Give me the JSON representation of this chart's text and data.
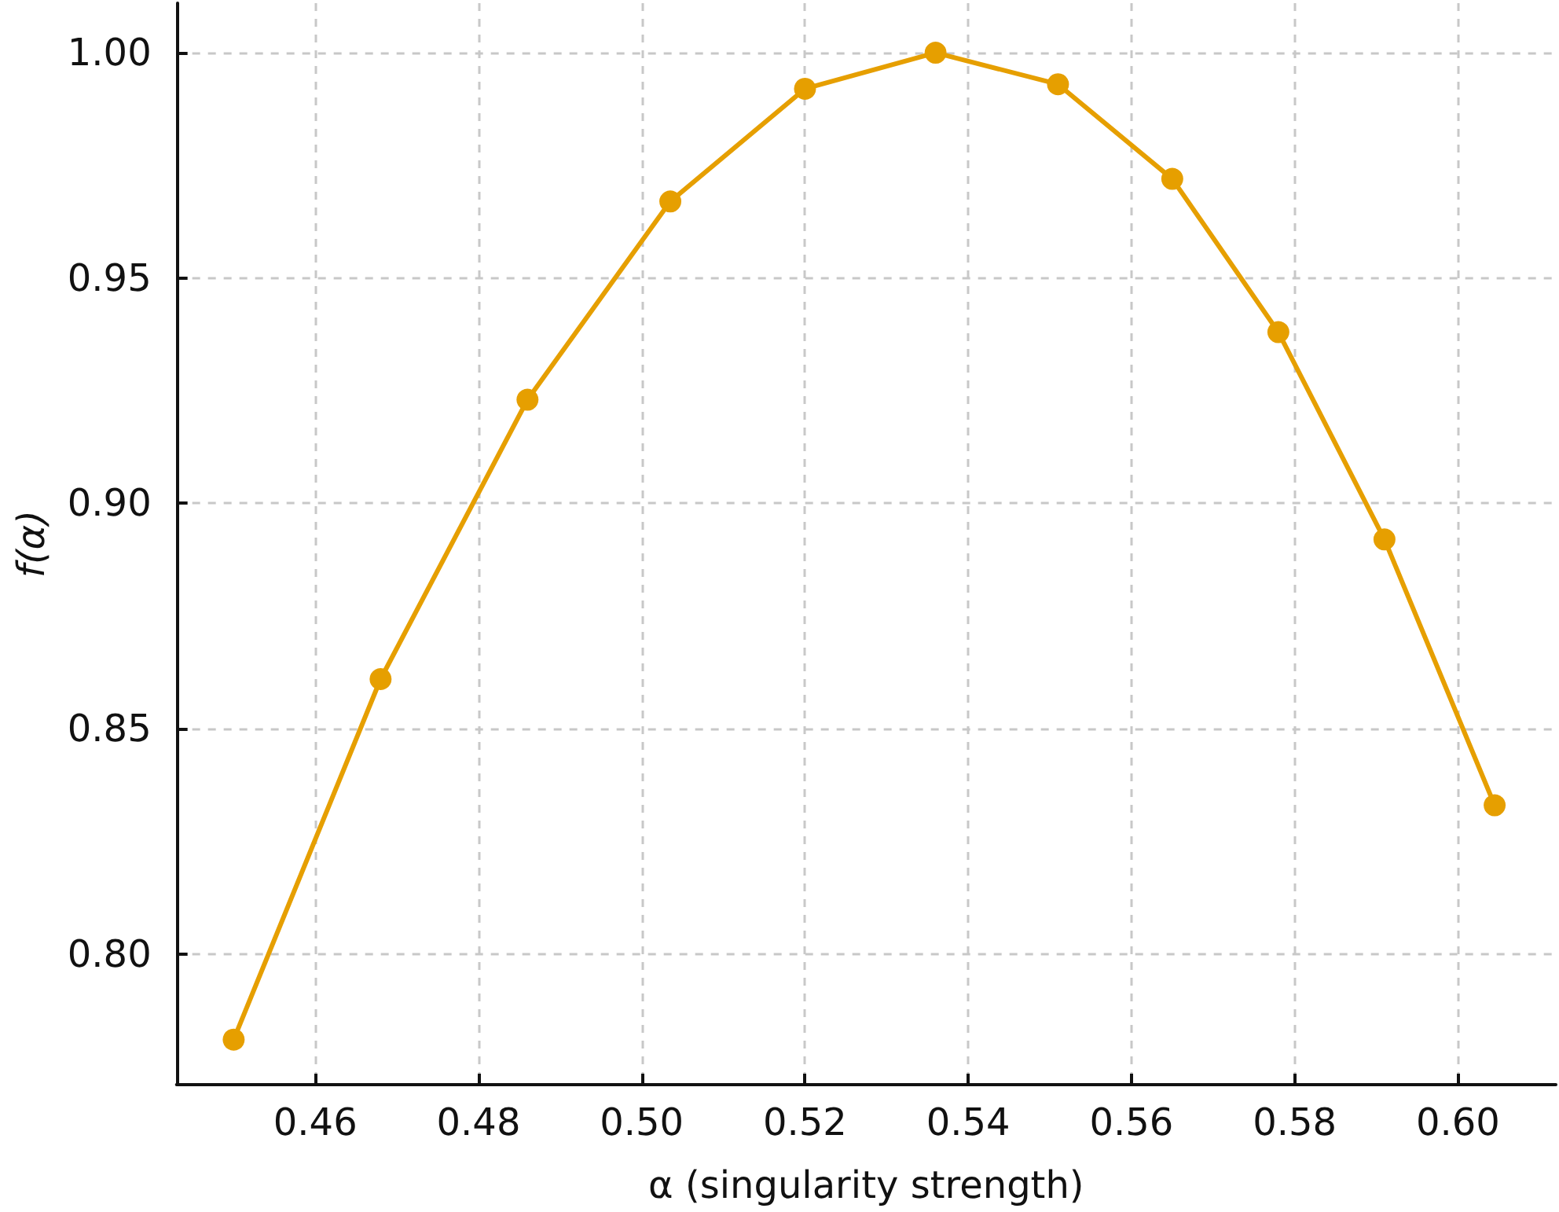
{
  "chart_data": {
    "type": "line",
    "xlabel": "α (singularity strength)",
    "ylabel": "f(α)",
    "x": [
      0.45,
      0.468,
      0.486,
      0.5035,
      0.52,
      0.536,
      0.551,
      0.565,
      0.578,
      0.591,
      0.6045
    ],
    "values": [
      0.781,
      0.861,
      0.923,
      0.967,
      0.992,
      1.0,
      0.993,
      0.972,
      0.938,
      0.892,
      0.833
    ],
    "color": "#e69f00",
    "xlim": [
      0.443,
      0.612
    ],
    "ylim": [
      0.771,
      1.011
    ],
    "xticks": [
      0.46,
      0.48,
      {
        "value": 0.5,
        "label": "0.50"
      },
      0.52,
      0.54,
      0.56,
      0.58,
      {
        "value": 0.6,
        "label": "0.60"
      }
    ],
    "yticks": [
      {
        "value": 0.8,
        "label": "0.80"
      },
      0.85,
      {
        "value": 0.9,
        "label": "0.90"
      },
      0.95,
      {
        "value": 1,
        "label": "1.00"
      }
    ],
    "grid": true,
    "marker": "circle",
    "line_style": "solid"
  }
}
